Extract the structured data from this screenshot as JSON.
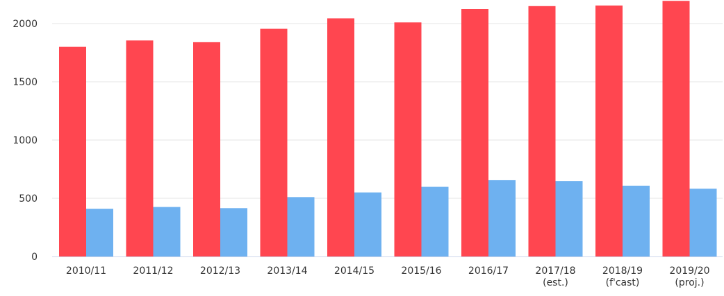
{
  "chart_data": {
    "type": "bar",
    "categories": [
      [
        "2010/11"
      ],
      [
        "2011/12"
      ],
      [
        "2012/13"
      ],
      [
        "2013/14"
      ],
      [
        "2014/15"
      ],
      [
        "2015/16"
      ],
      [
        "2016/17"
      ],
      [
        "2017/18",
        "(est.)"
      ],
      [
        "2018/19",
        "(f'cast)"
      ],
      [
        "2019/20",
        "(proj.)"
      ]
    ],
    "series": [
      {
        "color": "#ff4650",
        "values": [
          1800,
          1855,
          1840,
          1955,
          2045,
          2010,
          2125,
          2150,
          2155,
          2195
        ]
      },
      {
        "color": "#6eb1f0",
        "values": [
          410,
          425,
          415,
          510,
          550,
          598,
          655,
          648,
          608,
          582
        ]
      }
    ],
    "yticks": [
      "0",
      "500",
      "1000",
      "1500",
      "2000"
    ],
    "ylim": [
      0,
      2200
    ],
    "grid": true,
    "legend": "none",
    "title": "",
    "xlabel": "",
    "ylabel": ""
  }
}
